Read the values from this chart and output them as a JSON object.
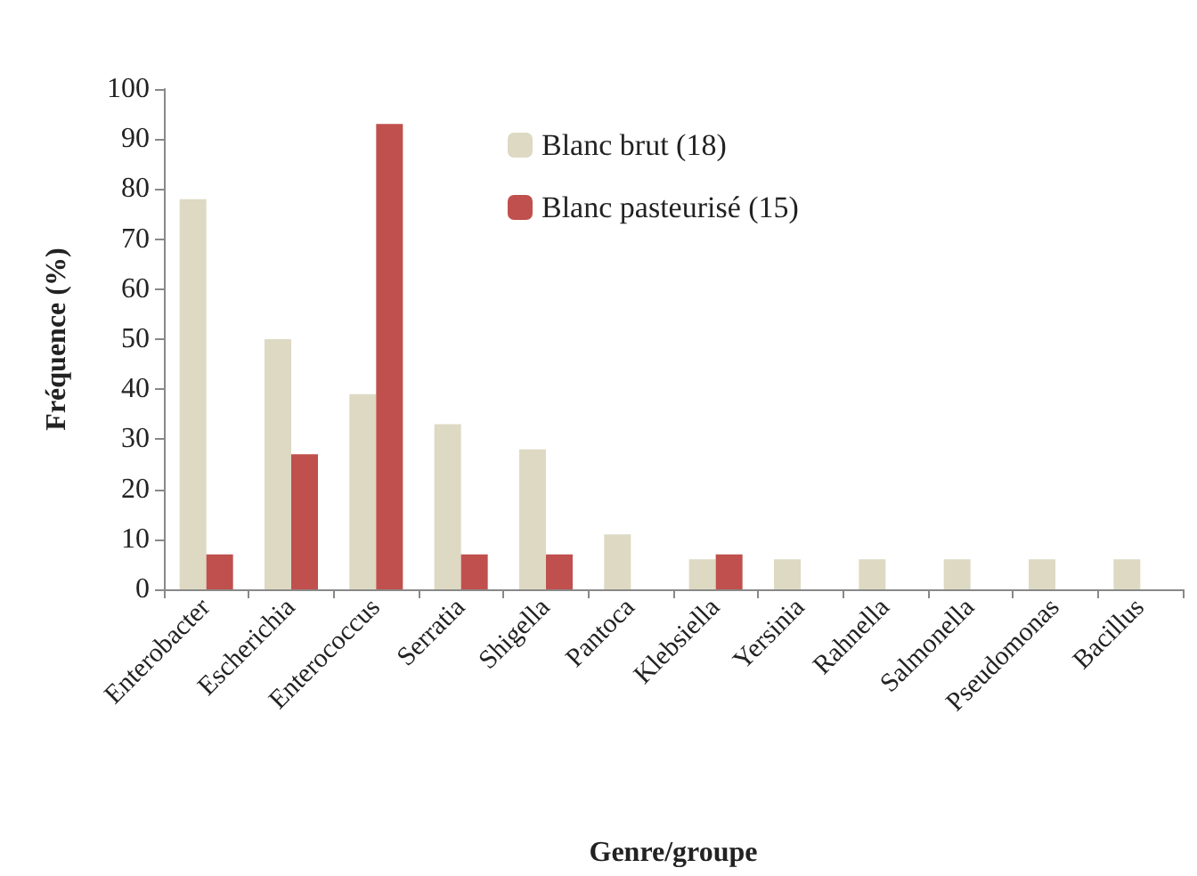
{
  "chart_data": {
    "type": "bar",
    "xlabel": "Genre/groupe",
    "ylabel": "Fréquence (%)",
    "categories": [
      "Enterobacter",
      "Escherichia",
      "Enterococcus",
      "Serratia",
      "Shigella",
      "Pantoca",
      "Klebsiella",
      "Yersinia",
      "Rahnella",
      "Salmonella",
      "Pseudomonas",
      "Bacillus"
    ],
    "series": [
      {
        "name": "Blanc brut (18)",
        "color": "#ddd9c3",
        "values": [
          78,
          50,
          39,
          33,
          28,
          11,
          6,
          6,
          6,
          6,
          6,
          6
        ]
      },
      {
        "name": "Blanc pasteurisé (15)",
        "color": "#c0504d",
        "values": [
          7,
          27,
          93,
          7,
          7,
          null,
          7,
          null,
          null,
          null,
          null,
          null
        ]
      }
    ],
    "ylim": [
      0,
      100
    ],
    "yticks": [
      0,
      10,
      20,
      30,
      40,
      50,
      60,
      70,
      80,
      90,
      100
    ],
    "grid": false,
    "legend": "top"
  }
}
